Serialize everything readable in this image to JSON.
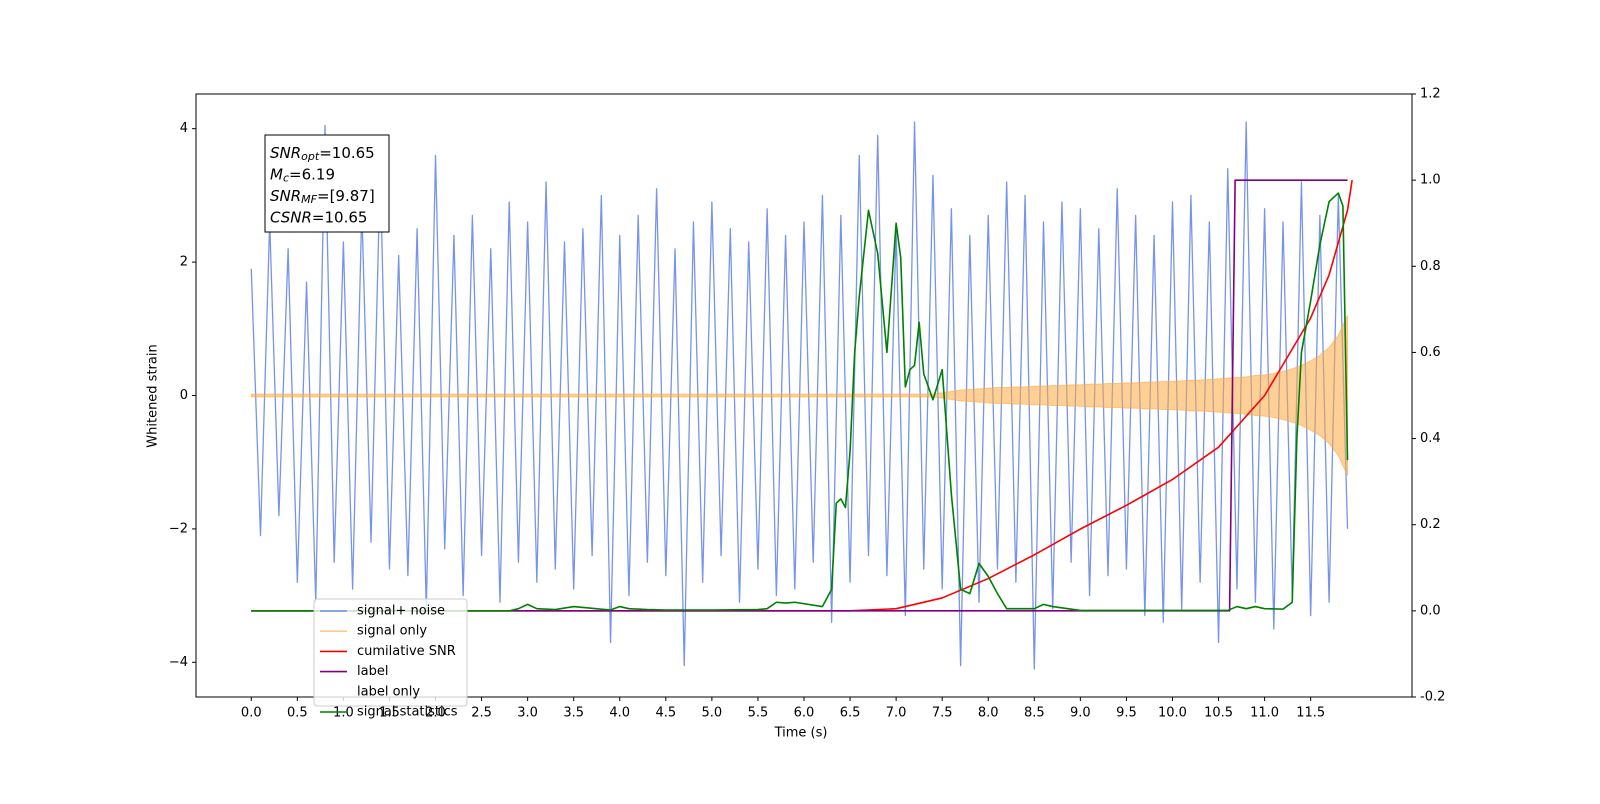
{
  "chart_data": {
    "type": "line",
    "xlabel": "Time (s)",
    "ylabel": "Whitened strain",
    "xlim": [
      -0.6,
      12.6
    ],
    "ylim": [
      -4.52,
      4.52
    ],
    "y2lim": [
      -0.2,
      1.2
    ],
    "xticks": [
      {
        "value": 0,
        "label": "0.0"
      },
      0.5,
      {
        "value": 1,
        "label": "1.0"
      },
      1.5,
      {
        "value": 2,
        "label": "2.0"
      },
      2.5,
      {
        "value": 3,
        "label": "3.0"
      },
      3.5,
      {
        "value": 4,
        "label": "4.0"
      },
      4.5,
      {
        "value": 5,
        "label": "5.0"
      },
      5.5,
      {
        "value": 6,
        "label": "6.0"
      },
      6.5,
      {
        "value": 7,
        "label": "7.0"
      },
      7.5,
      {
        "value": 8,
        "label": "8.0"
      },
      8.5,
      {
        "value": 9,
        "label": "9.0"
      },
      9.5,
      {
        "value": 10,
        "label": "10.0"
      },
      10.5,
      {
        "value": 11,
        "label": "11.0"
      },
      11.5
    ],
    "yticks": [
      {
        "value": -4,
        "label": "−4"
      },
      {
        "value": -2,
        "label": "−2"
      },
      0,
      2,
      4
    ],
    "y2ticks": [
      -0.2,
      {
        "value": 0,
        "label": "0.0"
      },
      0.2,
      0.4,
      0.6,
      0.8,
      {
        "value": 1,
        "label": "1.0"
      },
      1.2
    ],
    "annotation": [
      {
        "base": "SNR",
        "sub": "opt",
        "text": "=10.65"
      },
      {
        "base": "M",
        "sub": "c",
        "text": "=6.19"
      },
      {
        "base": "SNR",
        "sub": "MF",
        "text": "=[9.87]"
      },
      {
        "base": "CSNR",
        "text": "=10.65"
      }
    ],
    "series": [
      {
        "name": "signal+ noise",
        "color": "#6f8ee8",
        "x": [
          0,
          0.1,
          0.2,
          0.3,
          0.4,
          0.5,
          0.6,
          0.7,
          0.8,
          0.9,
          1,
          1.1,
          1.2,
          1.3,
          1.4,
          1.5,
          1.6,
          1.7,
          1.8,
          1.9,
          2,
          2.1,
          2.2,
          2.3,
          2.4,
          2.5,
          2.6,
          2.7,
          2.8,
          2.9,
          3,
          3.1,
          3.2,
          3.3,
          3.4,
          3.5,
          3.6,
          3.7,
          3.8,
          3.9,
          4,
          4.1,
          4.2,
          4.3,
          4.4,
          4.5,
          4.6,
          4.7,
          4.8,
          4.9,
          5,
          5.1,
          5.2,
          5.3,
          5.4,
          5.5,
          5.6,
          5.7,
          5.8,
          5.9,
          6,
          6.1,
          6.2,
          6.3,
          6.4,
          6.5,
          6.6,
          6.7,
          6.8,
          6.9,
          7,
          7.1,
          7.2,
          7.3,
          7.4,
          7.5,
          7.6,
          7.7,
          7.8,
          7.9,
          8,
          8.1,
          8.2,
          8.3,
          8.4,
          8.5,
          8.6,
          8.7,
          8.8,
          8.9,
          9,
          9.1,
          9.2,
          9.3,
          9.4,
          9.5,
          9.6,
          9.7,
          9.8,
          9.9,
          10,
          10.1,
          10.2,
          10.3,
          10.4,
          10.5,
          10.6,
          10.7,
          10.8,
          10.9,
          11,
          11.1,
          11.2,
          11.3,
          11.4,
          11.5,
          11.6,
          11.7,
          11.8,
          11.9
        ],
        "values": [
          1.9,
          -2.1,
          2.6,
          -1.8,
          2.2,
          -2.8,
          1.7,
          -3.1,
          4.05,
          -2.5,
          2.3,
          -2.9,
          2.8,
          -2.2,
          3.4,
          -2.6,
          2.1,
          -2.7,
          2.5,
          -3.2,
          3.6,
          -2.3,
          2.4,
          -3.0,
          2.7,
          -2.4,
          2.2,
          -3.1,
          2.9,
          -2.5,
          2.6,
          -2.8,
          3.2,
          -2.6,
          2.3,
          -2.9,
          2.5,
          -2.4,
          3.0,
          -3.7,
          2.4,
          -3.0,
          2.7,
          -2.5,
          3.1,
          -2.7,
          2.2,
          -4.05,
          2.6,
          -2.8,
          2.9,
          -2.4,
          2.5,
          -3.1,
          2.3,
          -2.6,
          2.8,
          -3.0,
          2.4,
          -2.9,
          2.6,
          -2.5,
          3.0,
          -3.4,
          2.7,
          -2.8,
          3.6,
          -2.4,
          3.9,
          -2.7,
          2.5,
          -3.3,
          4.1,
          -2.6,
          3.3,
          -2.9,
          2.8,
          -4.05,
          2.4,
          -3.1,
          2.7,
          -2.6,
          3.2,
          -2.8,
          3.0,
          -4.1,
          2.6,
          -3.2,
          2.9,
          -2.5,
          2.8,
          -3.0,
          2.5,
          -2.7,
          3.1,
          -2.6,
          2.7,
          -3.3,
          2.4,
          -3.4,
          2.9,
          -3.2,
          3.0,
          -2.8,
          2.6,
          -3.7,
          3.4,
          -2.9,
          4.1,
          -3.1,
          2.8,
          -3.5,
          2.6,
          -3.0,
          3.2,
          -3.3,
          2.7,
          -3.1,
          3.0,
          -2.0
        ]
      },
      {
        "name": "signal only",
        "color": "#ffa940",
        "fill": true,
        "x": [
          0,
          7.4,
          7.5,
          7.6,
          7.7,
          7.8,
          7.9,
          8,
          8.1,
          8.2,
          8.3,
          8.4,
          8.5,
          8.6,
          8.7,
          8.8,
          8.9,
          9,
          9.1,
          9.2,
          9.3,
          9.4,
          9.5,
          9.6,
          9.7,
          9.8,
          9.9,
          10,
          10.1,
          10.2,
          10.3,
          10.4,
          10.5,
          10.6,
          10.7,
          10.8,
          10.9,
          11,
          11.1,
          11.2,
          11.3,
          11.4,
          11.5,
          11.6,
          11.7,
          11.8,
          11.9
        ],
        "values": [
          0.02,
          0.02,
          0.04,
          0.06,
          0.08,
          0.09,
          0.1,
          0.11,
          0.12,
          0.12,
          0.13,
          0.13,
          0.14,
          0.14,
          0.15,
          0.15,
          0.16,
          0.16,
          0.17,
          0.17,
          0.18,
          0.18,
          0.19,
          0.19,
          0.2,
          0.2,
          0.21,
          0.21,
          0.22,
          0.23,
          0.23,
          0.24,
          0.25,
          0.26,
          0.27,
          0.28,
          0.3,
          0.31,
          0.33,
          0.36,
          0.4,
          0.45,
          0.52,
          0.6,
          0.72,
          0.9,
          1.2
        ]
      },
      {
        "name": "cumilative SNR",
        "color": "#ff0000",
        "axis": "y2",
        "x": [
          0,
          6.5,
          7,
          7.5,
          8,
          8.5,
          9,
          9.5,
          10,
          10.5,
          11,
          11.5,
          11.7,
          11.9,
          11.95
        ],
        "values": [
          0,
          0,
          0.005,
          0.03,
          0.075,
          0.13,
          0.19,
          0.245,
          0.305,
          0.38,
          0.5,
          0.68,
          0.78,
          0.93,
          1.0
        ]
      },
      {
        "name": "label",
        "color": "#800080",
        "axis": "y2",
        "x": [
          0,
          10.62,
          10.68,
          11.9
        ],
        "values": [
          0,
          0,
          1,
          1
        ]
      },
      {
        "name": "label only",
        "color": "none",
        "axis": "y2",
        "x": [
          0,
          10.62,
          10.68,
          11.9
        ],
        "values": [
          0,
          0,
          1,
          1
        ]
      },
      {
        "name": "signal statistics",
        "color": "#008000",
        "axis": "y2",
        "x": [
          0,
          2.8,
          2.9,
          3.0,
          3.1,
          3.3,
          3.5,
          3.7,
          3.9,
          4.0,
          4.1,
          4.3,
          4.5,
          5.0,
          5.5,
          5.6,
          5.7,
          5.8,
          5.9,
          6.2,
          6.3,
          6.35,
          6.4,
          6.45,
          6.5,
          6.55,
          6.6,
          6.7,
          6.8,
          6.9,
          7.0,
          7.05,
          7.1,
          7.15,
          7.2,
          7.25,
          7.3,
          7.4,
          7.5,
          7.6,
          7.7,
          7.8,
          7.9,
          8.0,
          8.1,
          8.2,
          8.5,
          8.6,
          8.7,
          9.0,
          10.6,
          10.7,
          10.8,
          10.9,
          11.0,
          11.2,
          11.3,
          11.35,
          11.4,
          11.5,
          11.6,
          11.7,
          11.8,
          11.85,
          11.9
        ],
        "values": [
          0,
          0,
          0.005,
          0.015,
          0.005,
          0.003,
          0.01,
          0.006,
          0.002,
          0.01,
          0.005,
          0.003,
          0.002,
          0.002,
          0.003,
          0.005,
          0.02,
          0.018,
          0.02,
          0.01,
          0.05,
          0.25,
          0.26,
          0.24,
          0.37,
          0.6,
          0.73,
          0.93,
          0.83,
          0.6,
          0.9,
          0.82,
          0.52,
          0.56,
          0.57,
          0.67,
          0.55,
          0.49,
          0.56,
          0.27,
          0.05,
          0.04,
          0.11,
          0.08,
          0.04,
          0.005,
          0.005,
          0.015,
          0.01,
          0.001,
          0.001,
          0.01,
          0.005,
          0.01,
          0.005,
          0.004,
          0.02,
          0.4,
          0.6,
          0.72,
          0.85,
          0.95,
          0.97,
          0.94,
          0.35
        ]
      }
    ]
  }
}
